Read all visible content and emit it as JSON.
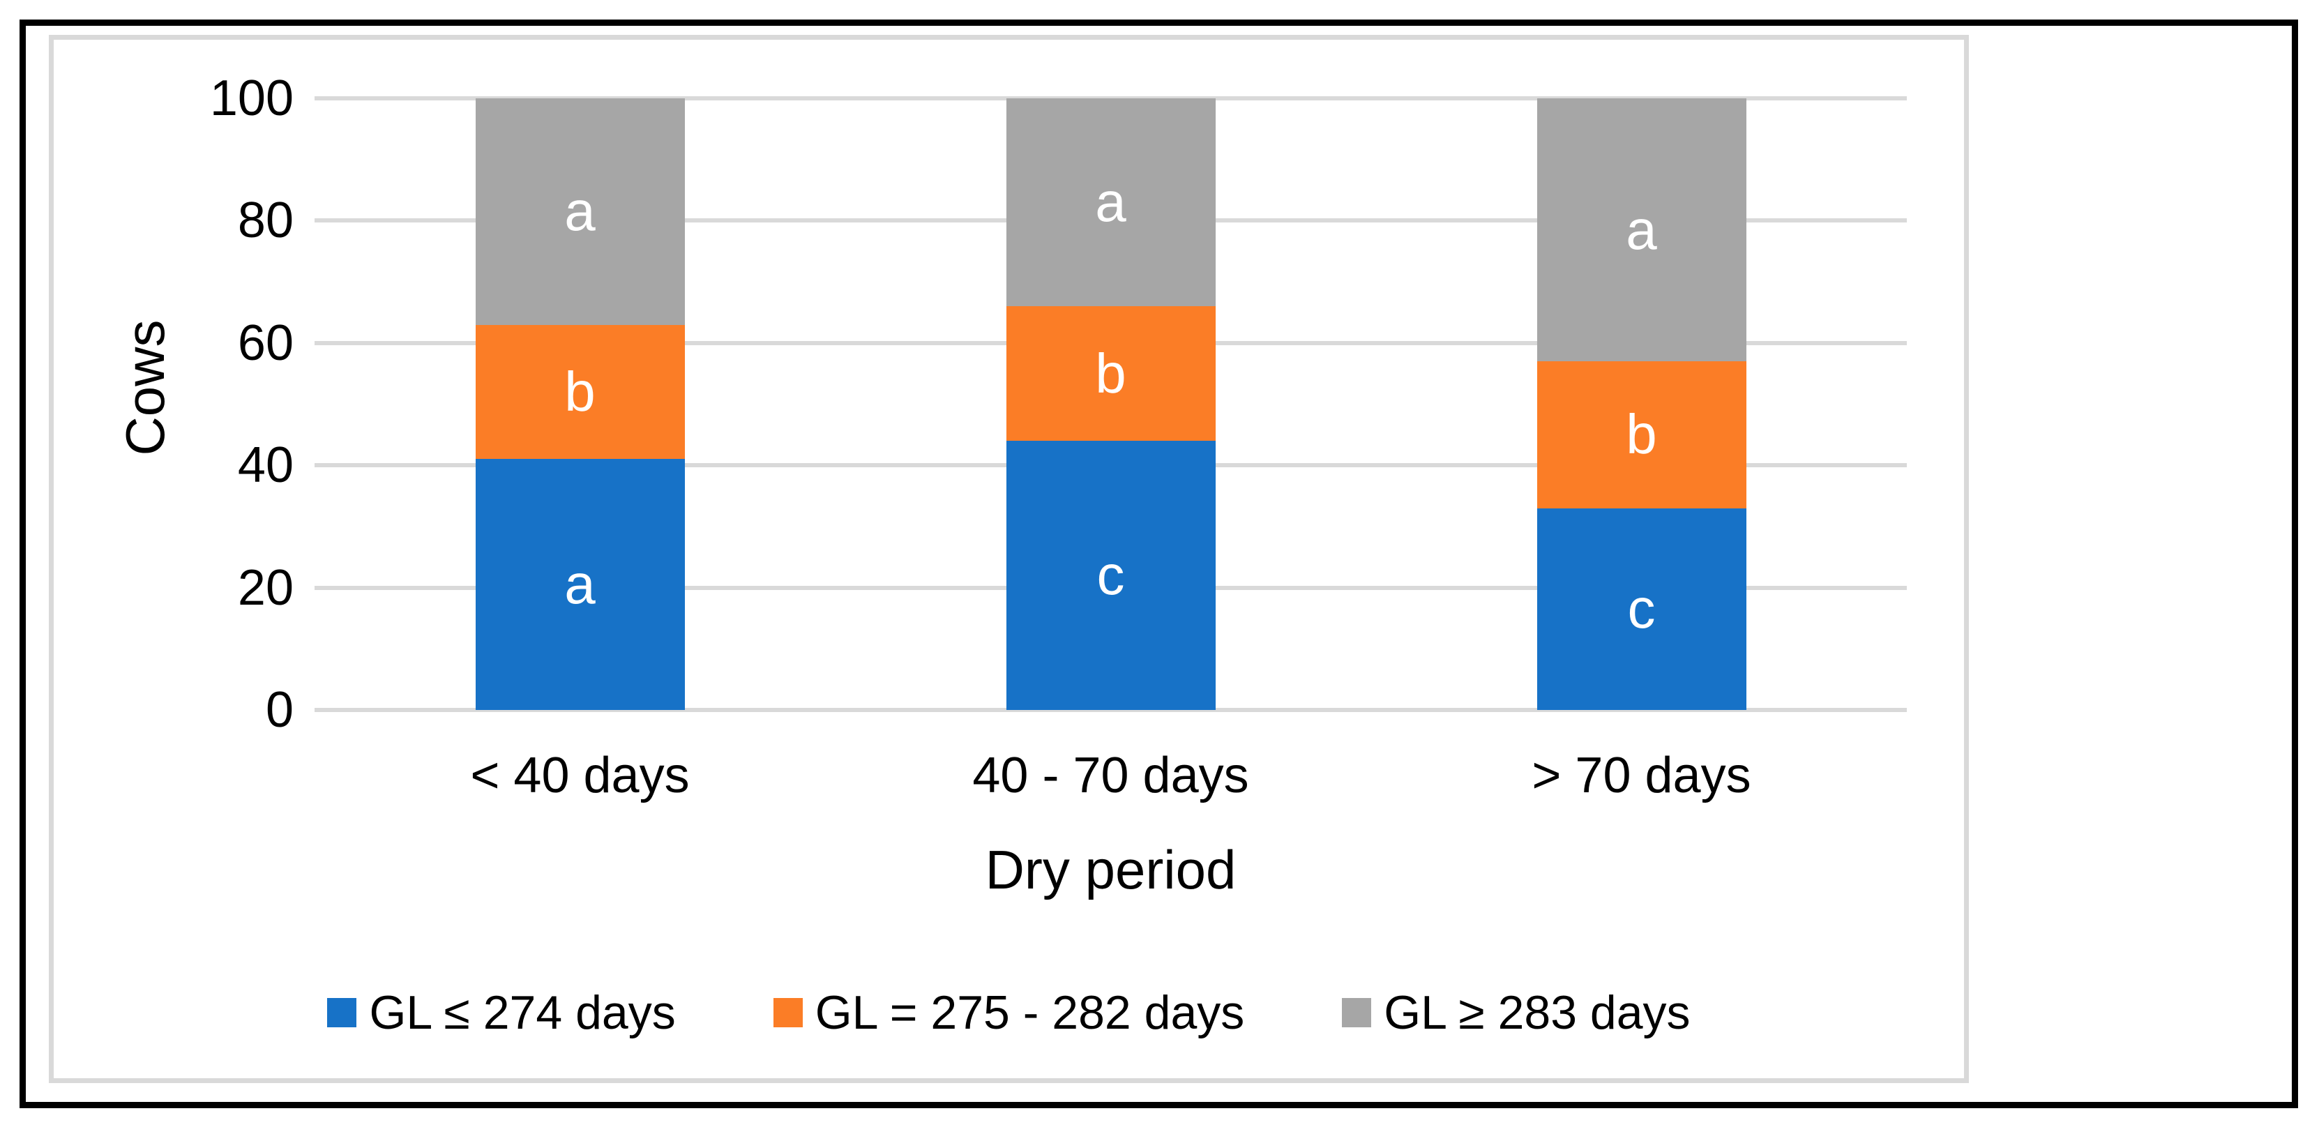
{
  "chart_data": {
    "type": "bar",
    "stacked": true,
    "categories": [
      "< 40 days",
      "40 - 70 days",
      "> 70 days"
    ],
    "series": [
      {
        "name": "GL ≤ 274 days",
        "color": "#1772c7",
        "values": [
          41,
          44,
          33
        ],
        "segment_labels": [
          "a",
          "c",
          "c"
        ]
      },
      {
        "name": "GL = 275 - 282 days",
        "color": "#fb7d26",
        "values": [
          22,
          22,
          24
        ],
        "segment_labels": [
          "b",
          "b",
          "b"
        ]
      },
      {
        "name": "GL ≥ 283 days",
        "color": "#a6a6a6",
        "values": [
          37,
          34,
          43
        ],
        "segment_labels": [
          "a",
          "a",
          "a"
        ]
      }
    ],
    "xlabel": "Dry period",
    "ylabel": "Cows",
    "ylim": [
      0,
      100
    ],
    "yticks": [
      0,
      20,
      40,
      60,
      80,
      100
    ],
    "grid": "horizontal",
    "gridline_color": "#d9d9d9",
    "segment_label_color": "#ffffff",
    "legend_position": "bottom",
    "border_outer_color": "#000000",
    "border_inner_color": "#d9d9d9",
    "background_color": "#ffffff"
  }
}
